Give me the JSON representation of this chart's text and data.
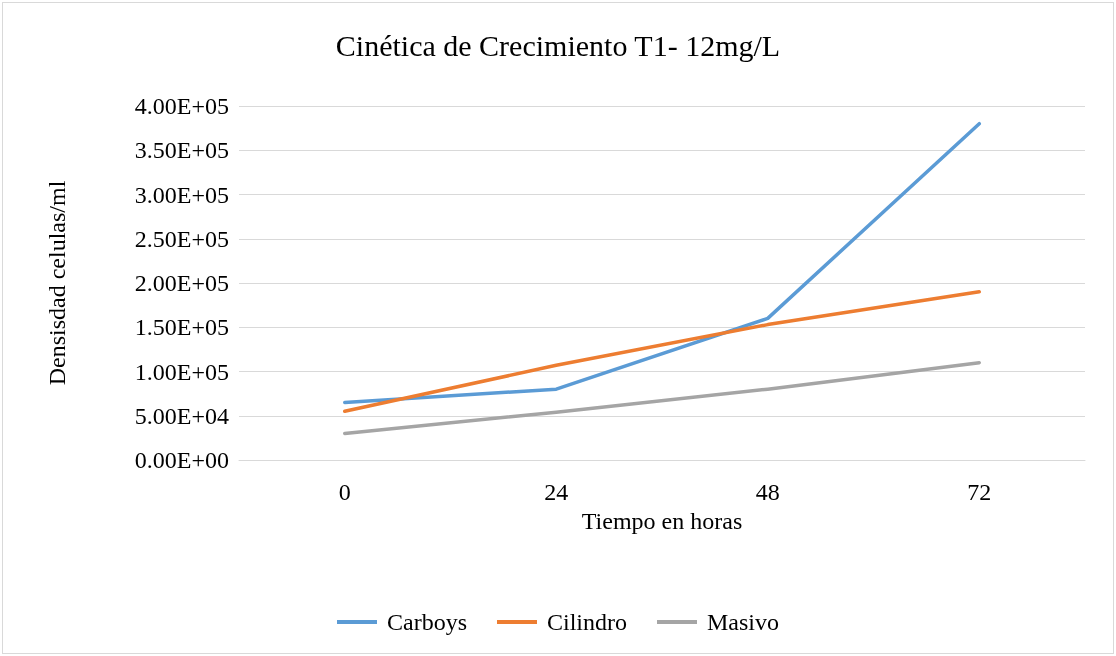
{
  "chart_data": {
    "type": "line",
    "title": "Cinética de Crecimiento T1- 12mg/L",
    "xlabel": "Tiempo en horas",
    "ylabel": "Densisdad celulas/ml",
    "categories": [
      "0",
      "24",
      "48",
      "72"
    ],
    "series": [
      {
        "name": "Carboys",
        "color": "#5b9bd5",
        "values": [
          65000,
          80000,
          160000,
          380000
        ]
      },
      {
        "name": "Cilindro",
        "color": "#ed7d31",
        "values": [
          55000,
          107000,
          153000,
          190000
        ]
      },
      {
        "name": "Masivo",
        "color": "#a5a5a5",
        "values": [
          30000,
          54000,
          80000,
          110000
        ]
      }
    ],
    "ylim": [
      0,
      400000
    ],
    "yticks": [
      {
        "value": 0,
        "label": "0.00E+00"
      },
      {
        "value": 50000,
        "label": "5.00E+04"
      },
      {
        "value": 100000,
        "label": "1.00E+05"
      },
      {
        "value": 150000,
        "label": "1.50E+05"
      },
      {
        "value": 200000,
        "label": "2.00E+05"
      },
      {
        "value": 250000,
        "label": "2.50E+05"
      },
      {
        "value": 300000,
        "label": "3.00E+05"
      },
      {
        "value": 350000,
        "label": "3.50E+05"
      },
      {
        "value": 400000,
        "label": "4.00E+05"
      }
    ],
    "grid": "y",
    "legend": "bottom",
    "marker": "none",
    "line_style": "solid"
  }
}
